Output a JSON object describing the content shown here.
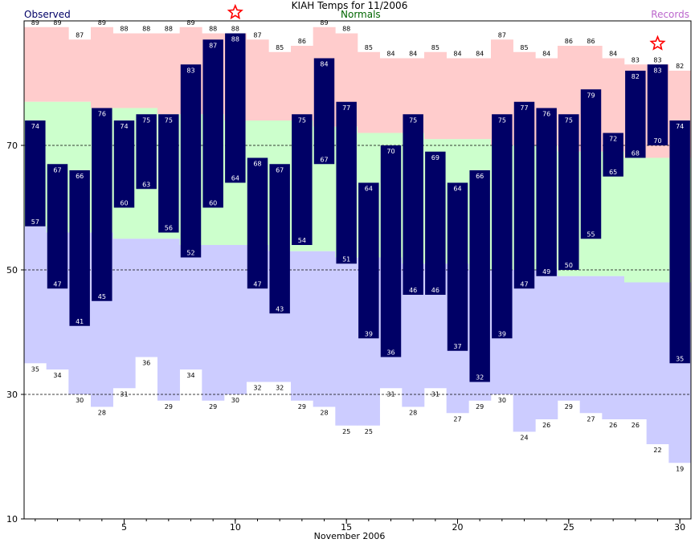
{
  "chart_data": {
    "type": "bar",
    "title": "KIAH Temps for 11/2006",
    "xlabel": "November 2006",
    "ylabel": "",
    "ylim": [
      10,
      90
    ],
    "xlim": [
      0.5,
      30.5
    ],
    "yticks": [
      10,
      30,
      50,
      70
    ],
    "xticks": [
      5,
      10,
      15,
      20,
      25,
      30
    ],
    "grid": "dashed lines at 30, 50, 70",
    "legend": {
      "observed": "Observed",
      "normals": "Normals",
      "records": "Records",
      "placement": "top"
    },
    "days": [
      1,
      2,
      3,
      4,
      5,
      6,
      7,
      8,
      9,
      10,
      11,
      12,
      13,
      14,
      15,
      16,
      17,
      18,
      19,
      20,
      21,
      22,
      23,
      24,
      25,
      26,
      27,
      28,
      29,
      30
    ],
    "series": [
      {
        "name": "Observed",
        "kind": "high",
        "values": [
          74,
          67,
          66,
          76,
          74,
          75,
          75,
          83,
          87,
          88,
          68,
          67,
          75,
          84,
          77,
          64,
          70,
          75,
          69,
          64,
          66,
          75,
          77,
          76,
          75,
          79,
          72,
          82,
          83,
          74
        ]
      },
      {
        "name": "Observed",
        "kind": "low",
        "values": [
          57,
          47,
          41,
          45,
          60,
          63,
          56,
          52,
          60,
          64,
          47,
          43,
          54,
          67,
          51,
          39,
          36,
          46,
          46,
          37,
          32,
          39,
          47,
          49,
          50,
          55,
          65,
          68,
          70,
          35
        ]
      },
      {
        "name": "Normals",
        "kind": "high",
        "values": [
          77,
          77,
          77,
          76,
          76,
          76,
          75,
          75,
          75,
          74,
          74,
          74,
          74,
          73,
          73,
          72,
          72,
          72,
          71,
          71,
          71,
          70,
          70,
          70,
          69,
          69,
          69,
          68,
          68,
          68
        ]
      },
      {
        "name": "Normals",
        "kind": "low",
        "values": [
          57,
          56,
          56,
          56,
          55,
          55,
          55,
          54,
          54,
          54,
          54,
          53,
          53,
          53,
          52,
          52,
          52,
          51,
          51,
          51,
          50,
          50,
          50,
          50,
          49,
          49,
          49,
          48,
          48,
          48
        ]
      },
      {
        "name": "Records",
        "kind": "high",
        "values": [
          89,
          89,
          87,
          89,
          88,
          88,
          88,
          89,
          88,
          88,
          87,
          85,
          86,
          89,
          88,
          85,
          84,
          84,
          85,
          84,
          84,
          87,
          85,
          84,
          86,
          86,
          84,
          83,
          83,
          82
        ]
      },
      {
        "name": "Records",
        "kind": "low",
        "values": [
          35,
          34,
          30,
          28,
          31,
          36,
          29,
          34,
          29,
          30,
          32,
          32,
          29,
          28,
          25,
          25,
          31,
          28,
          31,
          27,
          29,
          30,
          24,
          26,
          29,
          27,
          26,
          26,
          22,
          19
        ]
      }
    ],
    "record_set_days": [
      10,
      29
    ]
  },
  "colors": {
    "observed": "#000066",
    "normals_fill": "#ccffcc",
    "records_high_fill": "#ffcccc",
    "records_low_fill": "#ccccff",
    "star": "#ff0000",
    "grid": "#000000",
    "legend_observed": "#000066",
    "legend_normals": "#006600",
    "legend_records": "#bb66cc"
  }
}
